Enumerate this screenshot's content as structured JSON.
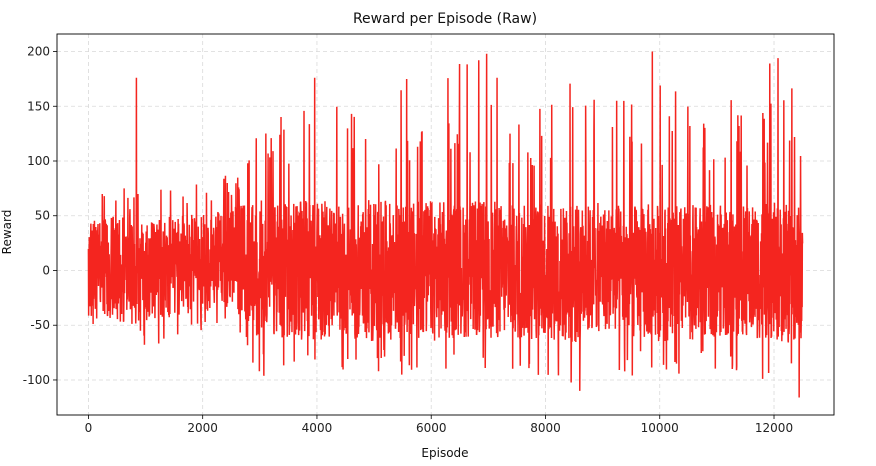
{
  "chart_data": {
    "type": "line",
    "title": "Reward per Episode (Raw)",
    "xlabel": "Episode",
    "ylabel": "Reward",
    "xlim": [
      -550,
      13050
    ],
    "ylim": [
      -132,
      216
    ],
    "x_ticks": [
      0,
      2000,
      4000,
      6000,
      8000,
      10000,
      12000
    ],
    "y_ticks": [
      -100,
      -50,
      0,
      50,
      100,
      150,
      200
    ],
    "grid": true,
    "legend": "none",
    "colors": {
      "line": "#f4251f",
      "grid": "#d9d9d9"
    },
    "series": [
      {
        "color": "#f4251f",
        "x_start": 0,
        "x_end": 12500,
        "envelope_x": [
          0,
          500,
          1000,
          1500,
          2000,
          2500,
          2700,
          3000,
          3500,
          4000,
          4500,
          5000,
          5500,
          6000,
          6500,
          7000,
          7500,
          8000,
          8500,
          9000,
          9500,
          10000,
          10500,
          11000,
          11500,
          12000,
          12500
        ],
        "envelope_high": [
          68,
          80,
          70,
          95,
          85,
          90,
          100,
          155,
          150,
          175,
          160,
          170,
          180,
          170,
          195,
          195,
          165,
          160,
          195,
          155,
          165,
          200,
          150,
          150,
          165,
          195,
          165
        ],
        "envelope_low": [
          -55,
          -75,
          -70,
          -65,
          -58,
          -55,
          -70,
          -100,
          -95,
          -103,
          -95,
          -100,
          -95,
          -98,
          -100,
          -90,
          -105,
          -105,
          -110,
          -80,
          -100,
          -95,
          -100,
          -90,
          -95,
          -105,
          -115
        ],
        "body_high": [
          45,
          50,
          45,
          50,
          52,
          58,
          60,
          65,
          62,
          65,
          62,
          65,
          62,
          65,
          62,
          65,
          60,
          62,
          60,
          62,
          60,
          62,
          60,
          60,
          60,
          62,
          60
        ],
        "body_low": [
          -42,
          -50,
          -48,
          -42,
          -38,
          -38,
          -45,
          -65,
          -62,
          -65,
          -62,
          -65,
          -62,
          -65,
          -62,
          -62,
          -65,
          -62,
          -70,
          -55,
          -62,
          -65,
          -65,
          -60,
          -62,
          -65,
          -70
        ],
        "notable_points": [
          {
            "x": 840,
            "y": 176
          },
          {
            "x": 3960,
            "y": 176
          },
          {
            "x": 6970,
            "y": 198
          },
          {
            "x": 8600,
            "y": -110
          },
          {
            "x": 9870,
            "y": 200
          },
          {
            "x": 12070,
            "y": 194
          },
          {
            "x": 12440,
            "y": -116
          }
        ]
      }
    ]
  }
}
